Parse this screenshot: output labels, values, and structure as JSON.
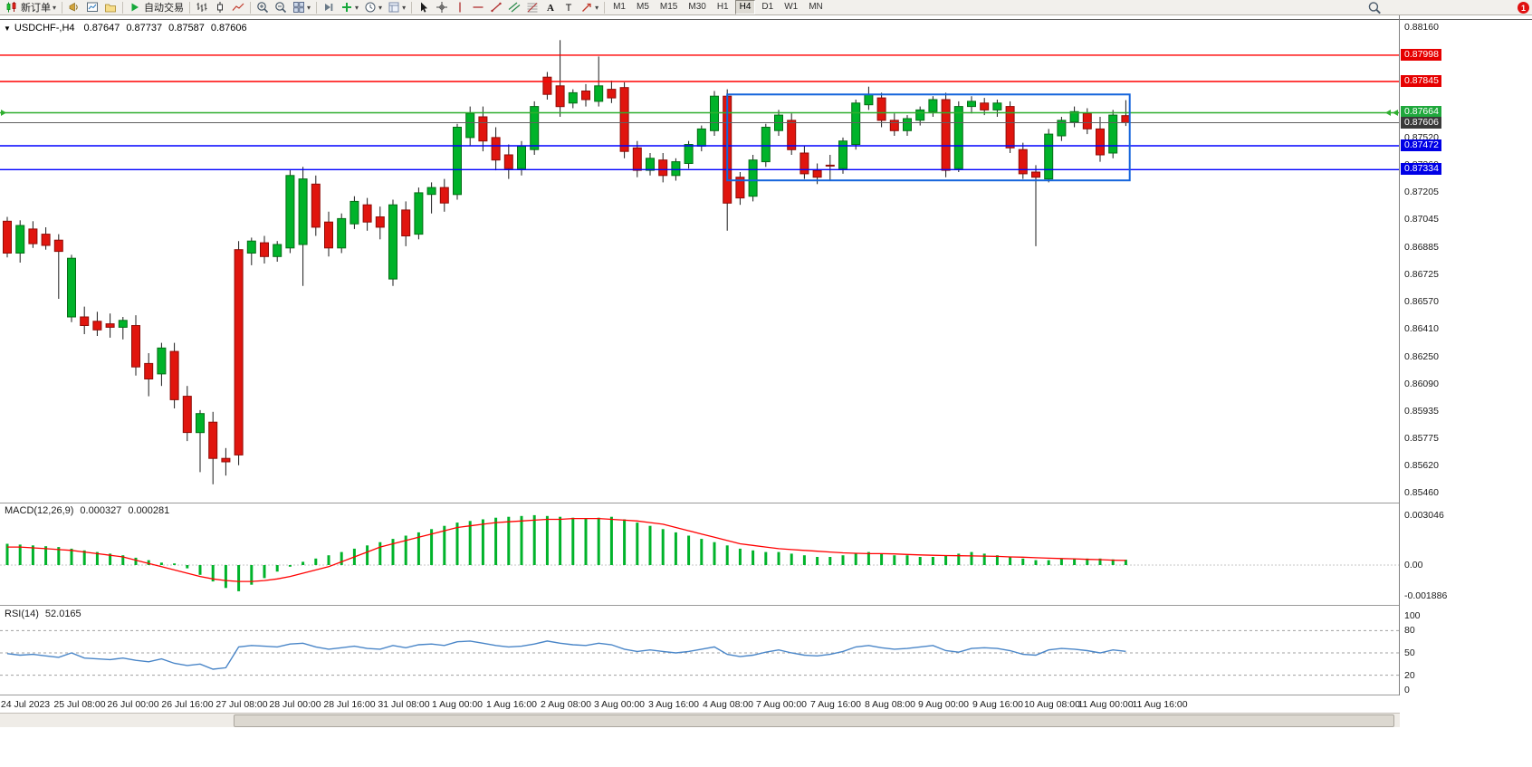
{
  "toolbar": {
    "groups": [
      [
        {
          "name": "new-order-button",
          "icon": "candles",
          "label": "新订单",
          "caret": true
        }
      ],
      [
        {
          "name": "alerts-button",
          "icon": "megaphone"
        },
        {
          "name": "new-chart-button",
          "icon": "new-chart"
        },
        {
          "name": "profiles-button",
          "icon": "profiles"
        }
      ],
      [
        {
          "name": "auto-trading-button",
          "icon": "play",
          "label": "自动交易"
        }
      ],
      [
        {
          "name": "bar-chart-button",
          "icon": "bars"
        },
        {
          "name": "candle-chart-button",
          "icon": "candle"
        },
        {
          "name": "line-chart-button",
          "icon": "linechart"
        }
      ],
      [
        {
          "name": "zoom-in-button",
          "icon": "zoom-in"
        },
        {
          "name": "zoom-out-button",
          "icon": "zoom-out"
        },
        {
          "name": "tile-windows-button",
          "icon": "tile",
          "caret": true
        }
      ],
      [
        {
          "name": "step-forward-button",
          "icon": "step"
        },
        {
          "name": "indicators-button",
          "icon": "add",
          "caret": true
        },
        {
          "name": "periods-button",
          "icon": "clock",
          "caret": true
        },
        {
          "name": "templates-button",
          "icon": "template",
          "caret": true
        }
      ],
      [
        {
          "name": "cursor-button",
          "icon": "cursor"
        },
        {
          "name": "crosshair-button",
          "icon": "crosshair"
        },
        {
          "name": "vertical-line-button",
          "icon": "vline"
        },
        {
          "name": "horizontal-line-button",
          "icon": "hline"
        },
        {
          "name": "trendline-button",
          "icon": "trendline"
        },
        {
          "name": "channel-button",
          "icon": "channel"
        },
        {
          "name": "fibonacci-button",
          "icon": "fibo"
        },
        {
          "name": "text-button",
          "icon": "text-A"
        },
        {
          "name": "label-button",
          "icon": "text-T"
        },
        {
          "name": "arrows-button",
          "icon": "arrows",
          "caret": true
        }
      ]
    ],
    "timeframes": [
      "M1",
      "M5",
      "M15",
      "M30",
      "H1",
      "H4",
      "D1",
      "W1",
      "MN"
    ],
    "active_timeframe": "H4",
    "notification_count": "1"
  },
  "chart": {
    "symbol_period": "USDCHF-,H4",
    "open": "0.87647",
    "high": "0.87737",
    "low": "0.87587",
    "close": "0.87606"
  },
  "indicators": {
    "macd_label": "MACD(12,26,9)",
    "macd_value": "0.000327",
    "macd_signal_value": "0.000281",
    "rsi_label": "RSI(14)",
    "rsi_value": "52.0165"
  },
  "price_axis": {
    "ticks": [
      "0.88160",
      "0.87520",
      "0.87360",
      "0.87205",
      "0.87045",
      "0.86885",
      "0.86725",
      "0.86570",
      "0.86410",
      "0.86250",
      "0.86090",
      "0.85935",
      "0.85775",
      "0.85620",
      "0.85460"
    ],
    "badges": [
      {
        "label": "0.87998",
        "bg": "#e60000",
        "fg": "#ffffff"
      },
      {
        "label": "0.87845",
        "bg": "#e60000",
        "fg": "#ffffff"
      },
      {
        "label": "0.87664",
        "bg": "#1fa83c",
        "fg": "#ffffff"
      },
      {
        "label": "0.87606",
        "bg": "#3a3a3a",
        "fg": "#ffffff"
      },
      {
        "label": "0.87472",
        "bg": "#0000e6",
        "fg": "#ffffff"
      },
      {
        "label": "0.87334",
        "bg": "#0000e6",
        "fg": "#ffffff"
      }
    ],
    "macd_ticks": [
      "0.003046",
      "0.00",
      "-0.001886"
    ],
    "rsi_ticks": [
      "100",
      "80",
      "50",
      "20",
      "0"
    ]
  },
  "time_axis": [
    "24 Jul 2023",
    "25 Jul 08:00",
    "26 Jul 00:00",
    "26 Jul 16:00",
    "27 Jul 08:00",
    "28 Jul 00:00",
    "28 Jul 16:00",
    "31 Jul 08:00",
    "1 Aug 00:00",
    "1 Aug 16:00",
    "2 Aug 08:00",
    "3 Aug 00:00",
    "3 Aug 16:00",
    "4 Aug 08:00",
    "7 Aug 00:00",
    "7 Aug 16:00",
    "8 Aug 08:00",
    "9 Aug 00:00",
    "9 Aug 16:00",
    "10 Aug 08:00",
    "11 Aug 00:00",
    "11 Aug 16:00"
  ],
  "chart_data": [
    {
      "type": "candlestick",
      "title": "USDCHF-,H4",
      "timeframe": "H4",
      "ohlc_current": {
        "open": 0.87647,
        "high": 0.87737,
        "low": 0.87587,
        "close": 0.87606
      },
      "up_color": "#00b32a",
      "down_color": "#e0150e",
      "y_range": [
        0.8546,
        0.8816
      ],
      "candles": [
        [
          0.87035,
          0.8706,
          0.86825,
          0.8685
        ],
        [
          0.8685,
          0.8704,
          0.86795,
          0.8701
        ],
        [
          0.8699,
          0.87035,
          0.8688,
          0.86905
        ],
        [
          0.8696,
          0.87,
          0.8687,
          0.86895
        ],
        [
          0.86925,
          0.8696,
          0.86585,
          0.8686
        ],
        [
          0.8648,
          0.8684,
          0.8645,
          0.8682
        ],
        [
          0.8648,
          0.8654,
          0.8638,
          0.8643
        ],
        [
          0.86455,
          0.8651,
          0.8637,
          0.86405
        ],
        [
          0.8644,
          0.865,
          0.8636,
          0.8642
        ],
        [
          0.8642,
          0.8648,
          0.8635,
          0.8646
        ],
        [
          0.8643,
          0.8649,
          0.8614,
          0.8619
        ],
        [
          0.8621,
          0.8627,
          0.8602,
          0.8612
        ],
        [
          0.8615,
          0.8633,
          0.8608,
          0.863
        ],
        [
          0.8628,
          0.8633,
          0.8595,
          0.86
        ],
        [
          0.8602,
          0.8608,
          0.8576,
          0.8581
        ],
        [
          0.8581,
          0.8594,
          0.8558,
          0.8592
        ],
        [
          0.8587,
          0.8593,
          0.8551,
          0.8566
        ],
        [
          0.8566,
          0.8572,
          0.8556,
          0.8564
        ],
        [
          0.8687,
          0.8692,
          0.8562,
          0.8568
        ],
        [
          0.8685,
          0.8694,
          0.8678,
          0.8692
        ],
        [
          0.8691,
          0.8695,
          0.8679,
          0.8683
        ],
        [
          0.8683,
          0.8692,
          0.868,
          0.869
        ],
        [
          0.8688,
          0.8733,
          0.8685,
          0.873
        ],
        [
          0.869,
          0.8735,
          0.8666,
          0.8728
        ],
        [
          0.8725,
          0.873,
          0.8695,
          0.87
        ],
        [
          0.8703,
          0.8709,
          0.8683,
          0.8688
        ],
        [
          0.8688,
          0.8708,
          0.8685,
          0.8705
        ],
        [
          0.8702,
          0.8718,
          0.8699,
          0.8715
        ],
        [
          0.8713,
          0.8717,
          0.8698,
          0.8703
        ],
        [
          0.8706,
          0.8712,
          0.8693,
          0.87
        ],
        [
          0.867,
          0.8716,
          0.8666,
          0.8713
        ],
        [
          0.871,
          0.8715,
          0.8689,
          0.8695
        ],
        [
          0.8696,
          0.8723,
          0.8693,
          0.872
        ],
        [
          0.8719,
          0.8726,
          0.8708,
          0.8723
        ],
        [
          0.8723,
          0.8728,
          0.8709,
          0.8714
        ],
        [
          0.8719,
          0.876,
          0.8716,
          0.8758
        ],
        [
          0.8752,
          0.877,
          0.8747,
          0.8766
        ],
        [
          0.8764,
          0.877,
          0.8744,
          0.875
        ],
        [
          0.8752,
          0.8758,
          0.8733,
          0.8739
        ],
        [
          0.8742,
          0.8748,
          0.8728,
          0.8734
        ],
        [
          0.8734,
          0.875,
          0.873,
          0.8747
        ],
        [
          0.8745,
          0.8773,
          0.8742,
          0.877
        ],
        [
          0.8787,
          0.879,
          0.8774,
          0.8777
        ],
        [
          0.8782,
          0.88085,
          0.8764,
          0.877
        ],
        [
          0.8772,
          0.878,
          0.8769,
          0.8778
        ],
        [
          0.8779,
          0.8783,
          0.877,
          0.8774
        ],
        [
          0.8773,
          0.8799,
          0.877,
          0.8782
        ],
        [
          0.878,
          0.8785,
          0.8772,
          0.8775
        ],
        [
          0.8781,
          0.8784,
          0.874,
          0.8744
        ],
        [
          0.8746,
          0.875,
          0.8729,
          0.8733
        ],
        [
          0.8733,
          0.8743,
          0.873,
          0.874
        ],
        [
          0.8739,
          0.8743,
          0.8726,
          0.873
        ],
        [
          0.873,
          0.874,
          0.8727,
          0.8738
        ],
        [
          0.8737,
          0.875,
          0.8734,
          0.8748
        ],
        [
          0.8747,
          0.8759,
          0.8744,
          0.8757
        ],
        [
          0.8756,
          0.8779,
          0.8753,
          0.8776
        ],
        [
          0.8776,
          0.878,
          0.8698,
          0.8714
        ],
        [
          0.8729,
          0.8732,
          0.8713,
          0.8717
        ],
        [
          0.8718,
          0.8742,
          0.8715,
          0.8739
        ],
        [
          0.8738,
          0.876,
          0.8735,
          0.8758
        ],
        [
          0.8756,
          0.8768,
          0.8753,
          0.8765
        ],
        [
          0.8762,
          0.8766,
          0.8742,
          0.8745
        ],
        [
          0.8743,
          0.8747,
          0.8728,
          0.8731
        ],
        [
          0.8733,
          0.8737,
          0.8725,
          0.8729
        ],
        [
          0.8736,
          0.8742,
          0.8727,
          0.87355
        ],
        [
          0.8734,
          0.8752,
          0.8731,
          0.875
        ],
        [
          0.8748,
          0.8774,
          0.8745,
          0.8772
        ],
        [
          0.8771,
          0.87815,
          0.8768,
          0.8777
        ],
        [
          0.8775,
          0.8778,
          0.8758,
          0.8762
        ],
        [
          0.8762,
          0.8766,
          0.8753,
          0.8756
        ],
        [
          0.8756,
          0.8765,
          0.8753,
          0.8763
        ],
        [
          0.8762,
          0.877,
          0.8759,
          0.8768
        ],
        [
          0.8767,
          0.8776,
          0.8764,
          0.8774
        ],
        [
          0.8774,
          0.8778,
          0.8729,
          0.8733
        ],
        [
          0.8734,
          0.8773,
          0.8732,
          0.877
        ],
        [
          0.877,
          0.8776,
          0.8766,
          0.8773
        ],
        [
          0.8772,
          0.8775,
          0.8765,
          0.8768
        ],
        [
          0.8768,
          0.8774,
          0.8764,
          0.8772
        ],
        [
          0.877,
          0.8773,
          0.8743,
          0.8746
        ],
        [
          0.8745,
          0.8749,
          0.8728,
          0.8731
        ],
        [
          0.8732,
          0.8736,
          0.8689,
          0.8729
        ],
        [
          0.8728,
          0.8757,
          0.8726,
          0.8754
        ],
        [
          0.8753,
          0.8764,
          0.875,
          0.8762
        ],
        [
          0.8761,
          0.877,
          0.8758,
          0.8767
        ],
        [
          0.8766,
          0.8769,
          0.8754,
          0.8757
        ],
        [
          0.8757,
          0.8764,
          0.8738,
          0.8742
        ],
        [
          0.8743,
          0.8768,
          0.874,
          0.8765
        ],
        [
          0.87647,
          0.87737,
          0.87587,
          0.87606
        ]
      ],
      "levels": [
        {
          "price": 0.87998,
          "color": "#ff0000",
          "style": "solid",
          "name": "resistance-line-1"
        },
        {
          "price": 0.87845,
          "color": "#ff0000",
          "style": "solid",
          "name": "resistance-line-2"
        },
        {
          "price": 0.87664,
          "color": "#2fae2f",
          "style": "solid",
          "name": "green-level-line"
        },
        {
          "price": 0.87606,
          "color": "#606060",
          "style": "solid",
          "name": "current-price"
        },
        {
          "price": 0.87472,
          "color": "#0000ff",
          "style": "solid",
          "name": "support-line-1"
        },
        {
          "price": 0.87334,
          "color": "#0000ff",
          "style": "solid",
          "name": "support-line-2"
        }
      ],
      "rectangle": {
        "bar_start": 56.0,
        "bar_end": 87.3,
        "price_top": 0.8777,
        "price_bottom": 0.87272,
        "color": "#1464dc"
      }
    },
    {
      "type": "bar",
      "name": "MACD(12,26,9)",
      "histogram_color": "#00b32a",
      "signal_color": "#ff0000",
      "y_ticks": [
        0.003046,
        0,
        -0.001886
      ],
      "histogram": [
        0.0013,
        0.00125,
        0.0012,
        0.00115,
        0.0011,
        0.001,
        0.0009,
        0.0008,
        0.0007,
        0.0006,
        0.00045,
        0.0003,
        0.00015,
        0.0001,
        -0.0002,
        -0.0006,
        -0.001,
        -0.0014,
        -0.0016,
        -0.0012,
        -0.0008,
        -0.0004,
        -0.0001,
        0.0002,
        0.0004,
        0.0006,
        0.0008,
        0.001,
        0.0012,
        0.0014,
        0.0016,
        0.0018,
        0.002,
        0.0022,
        0.0024,
        0.0026,
        0.0027,
        0.0028,
        0.0029,
        0.00295,
        0.003,
        0.00305,
        0.003,
        0.00295,
        0.0029,
        0.00285,
        0.0029,
        0.00295,
        0.0028,
        0.0026,
        0.0024,
        0.0022,
        0.002,
        0.0018,
        0.0016,
        0.0014,
        0.0012,
        0.001,
        0.0009,
        0.0008,
        0.0008,
        0.0007,
        0.0006,
        0.0005,
        0.0005,
        0.0006,
        0.0007,
        0.0008,
        0.0007,
        0.0006,
        0.0006,
        0.0005,
        0.0005,
        0.0006,
        0.0007,
        0.0008,
        0.0007,
        0.0006,
        0.0005,
        0.0004,
        0.0003,
        0.0003,
        0.0004,
        0.0004,
        0.0004,
        0.0004,
        0.00035,
        0.000327
      ],
      "signal": [
        0.0011,
        0.0011,
        0.00105,
        0.001,
        0.00095,
        0.0009,
        0.0008,
        0.0007,
        0.0006,
        0.0005,
        0.0003,
        0.0001,
        -0.0001,
        -0.0003,
        -0.0005,
        -0.0007,
        -0.00085,
        -0.00095,
        -0.001,
        -0.001,
        -0.00095,
        -0.00085,
        -0.0007,
        -0.0005,
        -0.0003,
        -0.0001,
        0.0002,
        0.0005,
        0.0008,
        0.0011,
        0.0013,
        0.0015,
        0.0017,
        0.0019,
        0.0021,
        0.0023,
        0.0024,
        0.0025,
        0.0026,
        0.00265,
        0.0027,
        0.00275,
        0.0028,
        0.0028,
        0.00285,
        0.00285,
        0.00285,
        0.0028,
        0.00275,
        0.0027,
        0.0026,
        0.0025,
        0.0023,
        0.0021,
        0.0019,
        0.0017,
        0.0015,
        0.0013,
        0.0012,
        0.0011,
        0.001,
        0.00095,
        0.0009,
        0.00085,
        0.0008,
        0.00075,
        0.00072,
        0.0007,
        0.0007,
        0.00068,
        0.00065,
        0.00062,
        0.0006,
        0.00058,
        0.00057,
        0.00056,
        0.00055,
        0.00053,
        0.0005,
        0.00048,
        0.00045,
        0.00042,
        0.0004,
        0.00038,
        0.00035,
        0.00033,
        0.0003,
        0.000281
      ]
    },
    {
      "type": "line",
      "name": "RSI(14)",
      "last_value": 52.0165,
      "line_color": "#4a86c8",
      "levels": [
        80,
        50,
        20
      ],
      "y_ticks": [
        100,
        80,
        50,
        20,
        0
      ],
      "values": [
        49,
        47,
        48,
        46,
        44,
        50,
        43,
        42,
        41,
        43,
        40,
        38,
        42,
        36,
        33,
        35,
        28,
        30,
        58,
        60,
        59,
        58,
        62,
        63,
        58,
        55,
        57,
        59,
        56,
        55,
        60,
        57,
        61,
        62,
        60,
        65,
        66,
        63,
        60,
        58,
        59,
        62,
        66,
        63,
        61,
        60,
        63,
        61,
        55,
        52,
        54,
        52,
        50,
        52,
        55,
        58,
        48,
        45,
        47,
        51,
        54,
        50,
        47,
        46,
        48,
        52,
        58,
        60,
        57,
        55,
        56,
        58,
        60,
        53,
        51,
        56,
        57,
        56,
        53,
        48,
        47,
        54,
        56,
        55,
        53,
        50,
        54,
        52.0165
      ]
    }
  ]
}
